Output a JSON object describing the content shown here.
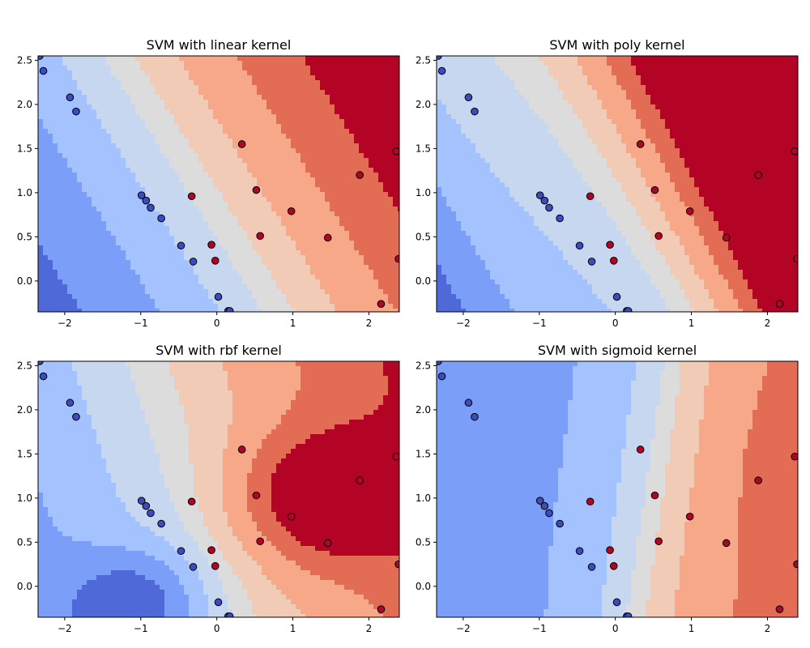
{
  "chart_data": [
    {
      "type": "scatter",
      "title": "SVM with linear kernel",
      "kernel": "linear",
      "xlim": [
        -2.35,
        2.4
      ],
      "ylim": [
        -0.35,
        2.55
      ],
      "xticks": [
        -2,
        -1,
        0,
        1,
        2
      ],
      "yticks": [
        0.0,
        0.5,
        1.0,
        1.5,
        2.0,
        2.5
      ],
      "xticklabels": [
        "−2",
        "−1",
        "0",
        "1",
        "2"
      ],
      "yticklabels": [
        "0.0",
        "0.5",
        "1.0",
        "1.5",
        "2.0",
        "2.5"
      ]
    },
    {
      "type": "scatter",
      "title": "SVM with poly kernel",
      "kernel": "poly",
      "xlim": [
        -2.35,
        2.4
      ],
      "ylim": [
        -0.35,
        2.55
      ],
      "xticks": [
        -2,
        -1,
        0,
        1,
        2
      ],
      "yticks": [
        0.0,
        0.5,
        1.0,
        1.5,
        2.0,
        2.5
      ],
      "xticklabels": [
        "−2",
        "−1",
        "0",
        "1",
        "2"
      ],
      "yticklabels": [
        "0.0",
        "0.5",
        "1.0",
        "1.5",
        "2.0",
        "2.5"
      ]
    },
    {
      "type": "scatter",
      "title": "SVM with rbf kernel",
      "kernel": "rbf",
      "xlim": [
        -2.35,
        2.4
      ],
      "ylim": [
        -0.35,
        2.55
      ],
      "xticks": [
        -2,
        -1,
        0,
        1,
        2
      ],
      "yticks": [
        0.0,
        0.5,
        1.0,
        1.5,
        2.0,
        2.5
      ],
      "xticklabels": [
        "−2",
        "−1",
        "0",
        "1",
        "2"
      ],
      "yticklabels": [
        "0.0",
        "0.5",
        "1.0",
        "1.5",
        "2.0",
        "2.5"
      ]
    },
    {
      "type": "scatter",
      "title": "SVM with sigmoid kernel",
      "kernel": "sigmoid",
      "xlim": [
        -2.35,
        2.4
      ],
      "ylim": [
        -0.35,
        2.55
      ],
      "xticks": [
        -2,
        -1,
        0,
        1,
        2
      ],
      "yticks": [
        0.0,
        0.5,
        1.0,
        1.5,
        2.0,
        2.5
      ],
      "xticklabels": [
        "−2",
        "−1",
        "0",
        "1",
        "2"
      ],
      "yticklabels": [
        "0.0",
        "0.5",
        "1.0",
        "1.5",
        "2.0",
        "2.5"
      ]
    }
  ],
  "points": {
    "class_0": [
      [
        -2.33,
        2.55
      ],
      [
        -2.28,
        2.38
      ],
      [
        -1.93,
        2.08
      ],
      [
        -1.85,
        1.92
      ],
      [
        -0.99,
        0.97
      ],
      [
        -0.93,
        0.91
      ],
      [
        -0.87,
        0.83
      ],
      [
        -0.73,
        0.71
      ],
      [
        -0.47,
        0.4
      ],
      [
        -0.31,
        0.22
      ],
      [
        0.02,
        -0.18
      ],
      [
        0.15,
        -0.34
      ],
      [
        0.17,
        -0.34
      ]
    ],
    "class_1": [
      [
        0.33,
        1.55
      ],
      [
        2.36,
        1.47
      ],
      [
        1.88,
        1.2
      ],
      [
        0.52,
        1.03
      ],
      [
        -0.33,
        0.96
      ],
      [
        0.98,
        0.79
      ],
      [
        0.57,
        0.51
      ],
      [
        1.46,
        0.49
      ],
      [
        -0.07,
        0.41
      ],
      [
        -0.02,
        0.23
      ],
      [
        2.39,
        0.25
      ],
      [
        2.16,
        -0.26
      ]
    ]
  },
  "colors": {
    "class_0": "#3b4cc0",
    "class_1": "#b40426",
    "marker_edge": "#000000",
    "region_levels": [
      "#4f69d9",
      "#7b9ff9",
      "#a3c2fe",
      "#c7d7f0",
      "#dddcdc",
      "#f2cbb7",
      "#f7a889",
      "#e36c55",
      "#b40426"
    ]
  }
}
